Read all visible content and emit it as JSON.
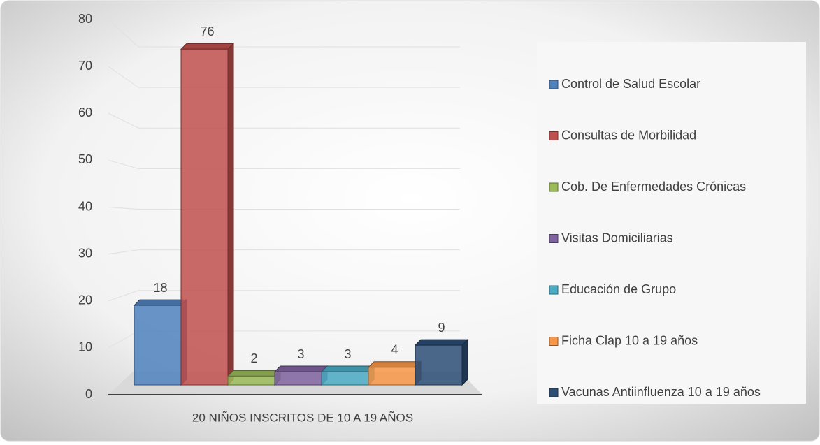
{
  "chart_data": {
    "type": "bar3d",
    "categories": [
      "20 NIÑOS INSCRITOS DE 10 A 19 AÑOS"
    ],
    "series": [
      {
        "name": "Control de Salud Escolar",
        "color": "#4f81bd",
        "values": [
          18
        ]
      },
      {
        "name": "Consultas de Morbilidad",
        "color": "#c0504d",
        "values": [
          76
        ]
      },
      {
        "name": "Cob. De Enfermedades Crónicas",
        "color": "#9bbb59",
        "values": [
          2
        ]
      },
      {
        "name": "Visitas Domiciliarias",
        "color": "#8064a2",
        "values": [
          3
        ]
      },
      {
        "name": "Educación de Grupo",
        "color": "#4bacc6",
        "values": [
          3
        ]
      },
      {
        "name": "Ficha Clap 10 a 19 años",
        "color": "#f79646",
        "values": [
          4
        ]
      },
      {
        "name": "Vacunas Antiinfluenza 10 a 19 años",
        "color": "#2c4d75",
        "values": [
          9
        ]
      }
    ],
    "ylim": [
      0,
      80
    ],
    "yticks": [
      0,
      10,
      20,
      30,
      40,
      50,
      60,
      70,
      80
    ],
    "grid": true,
    "legend": "right"
  }
}
